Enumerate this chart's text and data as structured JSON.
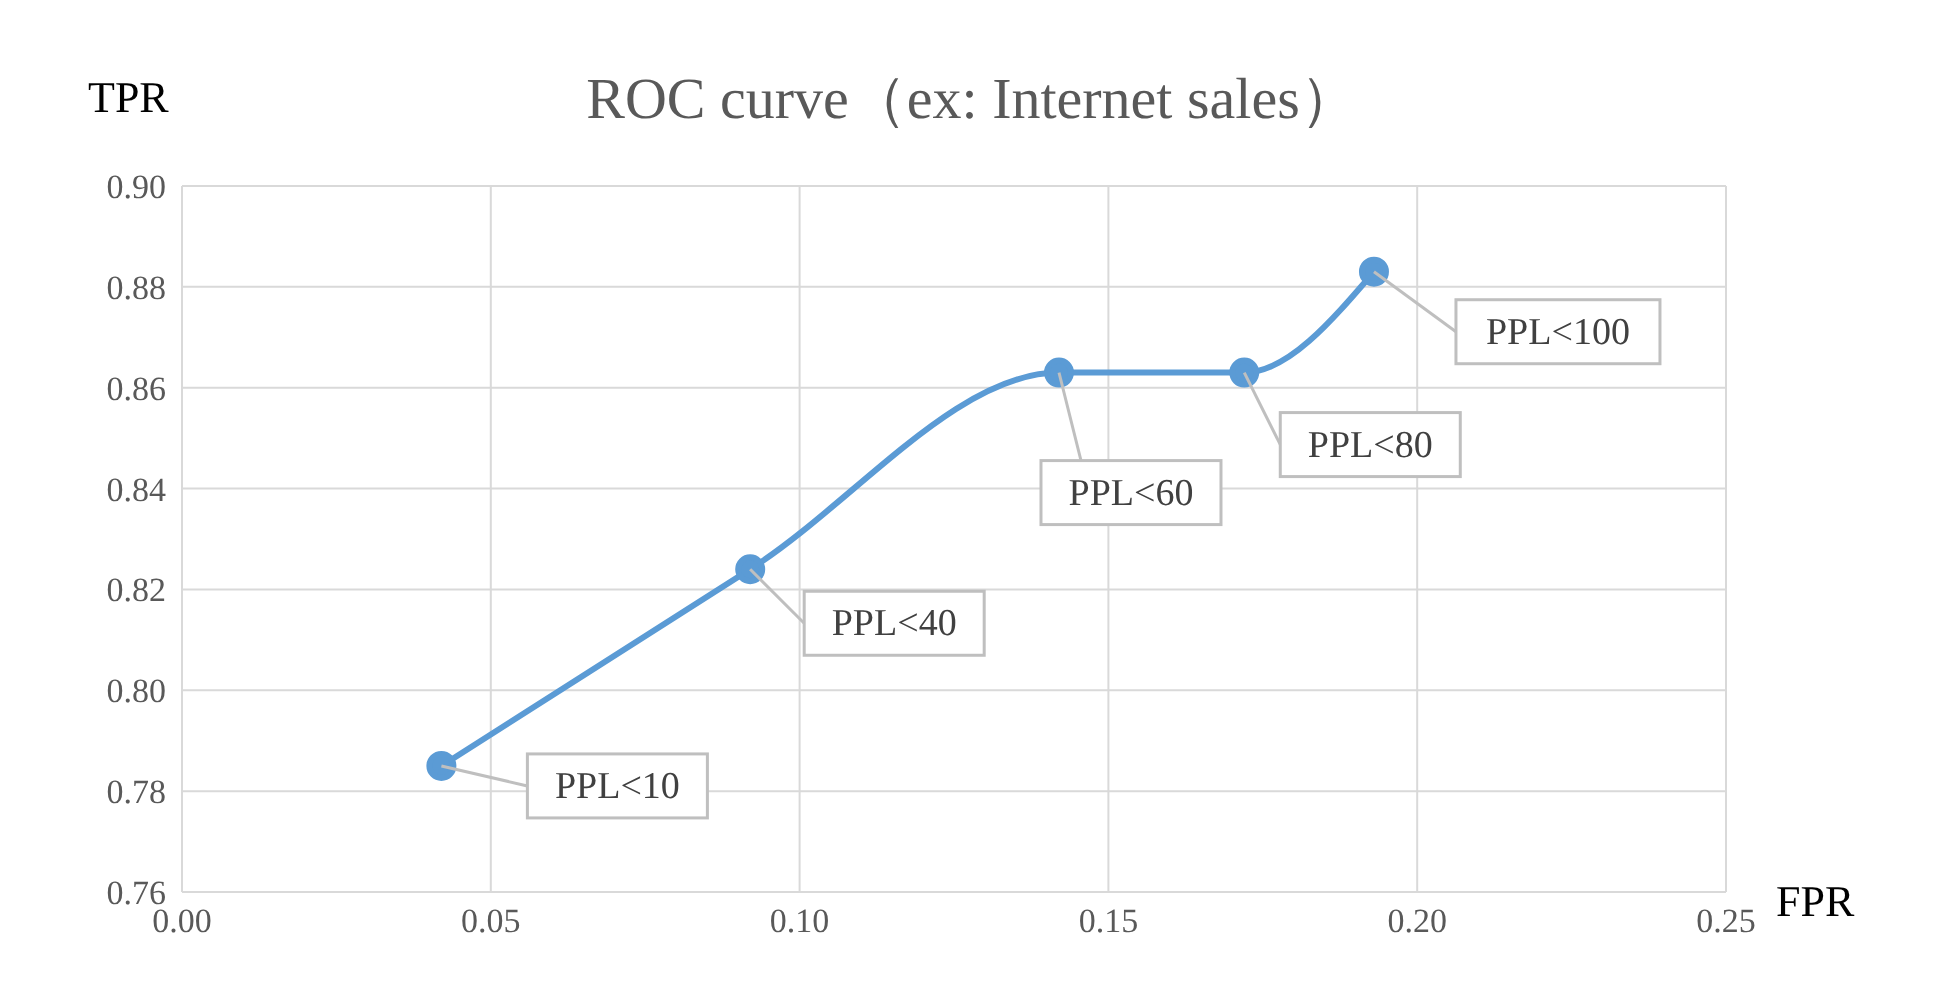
{
  "chart_data": {
    "type": "line",
    "title": "ROC curve（ex: Internet sales）",
    "xlabel": "FPR",
    "ylabel": "TPR",
    "x": [
      0.042,
      0.092,
      0.142,
      0.172,
      0.193
    ],
    "series": [
      {
        "color": "#5b9bd5",
        "values": [
          0.785,
          0.824,
          0.863,
          0.863,
          0.883
        ]
      }
    ],
    "xlim": [
      0,
      0.25
    ],
    "xticks": [
      {
        "value": 0,
        "label": "0.00"
      },
      {
        "value": 0.05,
        "label": "0.05"
      },
      {
        "value": 0.1,
        "label": "0.10"
      },
      {
        "value": 0.15,
        "label": "0.15"
      },
      {
        "value": 0.2,
        "label": "0.20"
      },
      {
        "value": 0.25,
        "label": "0.25"
      }
    ],
    "ylim": [
      0.76,
      0.9
    ],
    "yticks": [
      {
        "value": 0.76,
        "label": "0.76"
      },
      {
        "value": 0.78,
        "label": "0.78"
      },
      {
        "value": 0.8,
        "label": "0.80"
      },
      {
        "value": 0.82,
        "label": "0.82"
      },
      {
        "value": 0.84,
        "label": "0.84"
      },
      {
        "value": 0.86,
        "label": "0.86"
      },
      {
        "value": 0.88,
        "label": "0.88"
      },
      {
        "value": 0.9,
        "label": "0.90"
      }
    ],
    "annotations": [
      {
        "text": "PPL<10",
        "x": 0.042,
        "y": 0.785
      },
      {
        "text": "PPL<40",
        "x": 0.092,
        "y": 0.824
      },
      {
        "text": "PPL<60",
        "x": 0.142,
        "y": 0.863
      },
      {
        "text": "PPL<80",
        "x": 0.172,
        "y": 0.863
      },
      {
        "text": "PPL<100",
        "x": 0.193,
        "y": 0.883
      }
    ],
    "grid": true,
    "marker": "circle",
    "line_style": "solid",
    "legend": false
  }
}
